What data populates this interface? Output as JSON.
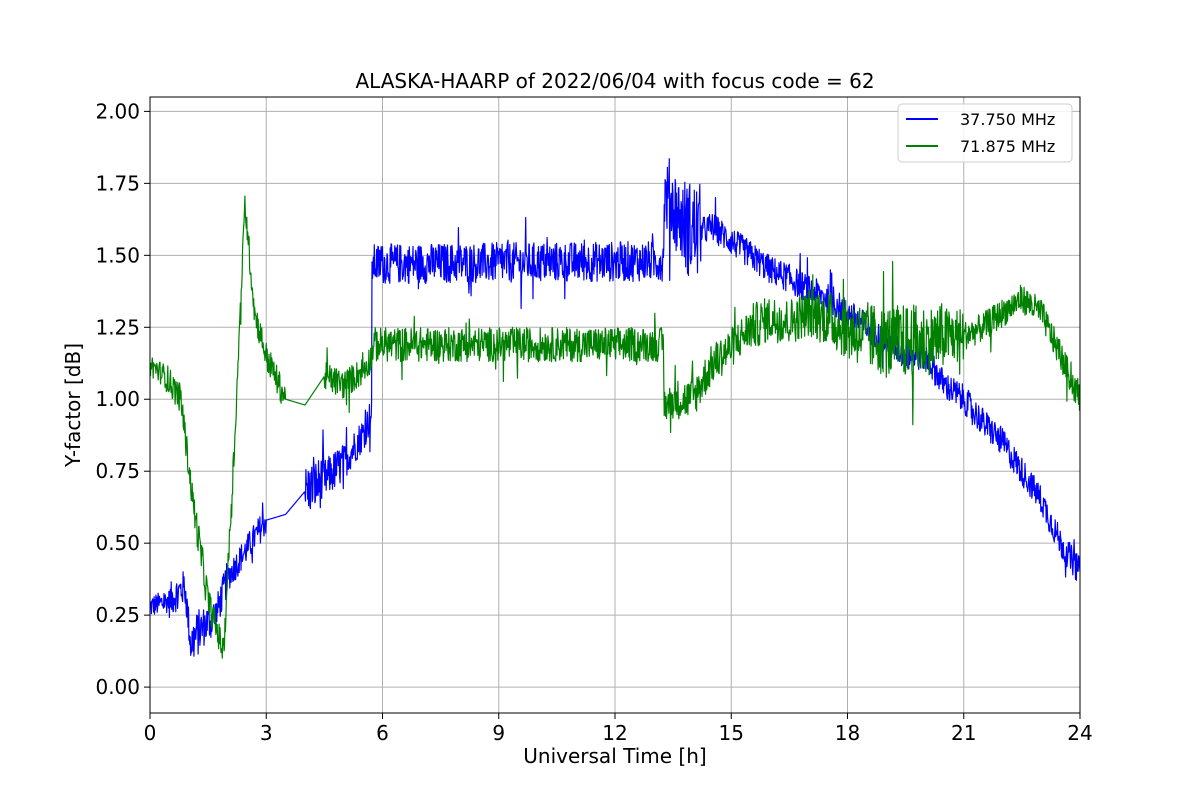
{
  "chart_data": {
    "type": "line",
    "title": "ALASKA-HAARP of 2022/06/04 with focus code = 62",
    "xlabel": "Universal Time [h]",
    "ylabel": "Y-factor [dB]",
    "xlim": [
      0,
      24
    ],
    "ylim": [
      -0.09,
      2.05
    ],
    "xticks": [
      0,
      3,
      6,
      9,
      12,
      15,
      18,
      21,
      24
    ],
    "xtick_labels": [
      "0",
      "3",
      "6",
      "9",
      "12",
      "15",
      "18",
      "21",
      "24"
    ],
    "yticks": [
      0.0,
      0.25,
      0.5,
      0.75,
      1.0,
      1.25,
      1.5,
      1.75,
      2.0
    ],
    "ytick_labels": [
      "0.00",
      "0.25",
      "0.50",
      "0.75",
      "1.00",
      "1.25",
      "1.50",
      "1.75",
      "2.00"
    ],
    "grid": true,
    "legend_position": "top-right",
    "series": [
      {
        "name": "37.750 MHz",
        "color": "#0000ff",
        "noise": [
          0.04,
          0.06,
          0.06,
          0.08,
          0.07,
          0.06,
          0.05,
          0.05,
          0.0,
          0.0,
          0.09,
          0.07,
          0.06,
          0.06,
          0.06,
          0.07,
          0.08,
          0.12,
          0.14,
          0.17
        ],
        "x": [
          0.0,
          0.5,
          0.9,
          1.05,
          1.3,
          1.7,
          2.0,
          2.5,
          3.0,
          3.5,
          4.0,
          4.5,
          5.0,
          5.5,
          5.72,
          5.73,
          13.25,
          13.27,
          13.4,
          13.8,
          14.2,
          14.5,
          15.0,
          15.5,
          16.0,
          16.5,
          17.0,
          17.5,
          18.0,
          18.5,
          19.0,
          19.5,
          20.0,
          20.5,
          21.0,
          21.5,
          22.0,
          22.5,
          23.0,
          23.5,
          24.0
        ],
        "y": [
          0.28,
          0.3,
          0.35,
          0.15,
          0.2,
          0.25,
          0.38,
          0.48,
          0.58,
          0.6,
          0.68,
          0.72,
          0.78,
          0.88,
          0.95,
          1.47,
          1.48,
          1.7,
          1.7,
          1.6,
          1.58,
          1.6,
          1.55,
          1.5,
          1.45,
          1.42,
          1.38,
          1.35,
          1.3,
          1.25,
          1.2,
          1.15,
          1.15,
          1.05,
          1.0,
          0.92,
          0.85,
          0.75,
          0.65,
          0.5,
          0.4
        ]
      },
      {
        "name": "71.875 MHz",
        "color": "#008000",
        "noise": [
          0.04,
          0.05,
          0.05,
          0.06,
          0.05,
          0.05,
          0.04,
          0.05,
          0.05,
          0.05,
          0.0,
          0.0,
          0.05,
          0.05,
          0.05,
          0.05,
          0.06,
          0.06,
          0.06,
          0.07,
          0.07,
          0.07,
          0.07,
          0.08,
          0.08,
          0.08,
          0.09,
          0.1,
          0.11,
          0.12,
          0.13,
          0.13,
          0.12,
          0.1
        ],
        "x": [
          0.0,
          0.4,
          0.8,
          1.1,
          1.5,
          1.9,
          2.2,
          2.45,
          2.7,
          3.0,
          3.5,
          4.0,
          4.5,
          5.0,
          5.5,
          5.73,
          5.74,
          13.25,
          13.27,
          13.6,
          14.0,
          14.5,
          15.0,
          15.5,
          16.0,
          16.5,
          17.0,
          17.5,
          18.0,
          18.5,
          19.0,
          19.5,
          20.0,
          20.5,
          21.0,
          21.5,
          22.0,
          22.5,
          23.0,
          23.5,
          24.0
        ],
        "y": [
          1.12,
          1.08,
          1.0,
          0.65,
          0.3,
          0.12,
          0.9,
          1.68,
          1.3,
          1.15,
          1.0,
          0.98,
          1.08,
          1.05,
          1.1,
          1.15,
          1.19,
          1.19,
          0.98,
          1.0,
          1.0,
          1.12,
          1.18,
          1.25,
          1.28,
          1.27,
          1.3,
          1.28,
          1.24,
          1.22,
          1.2,
          1.2,
          1.2,
          1.22,
          1.22,
          1.25,
          1.3,
          1.35,
          1.3,
          1.15,
          1.0
        ]
      }
    ]
  }
}
